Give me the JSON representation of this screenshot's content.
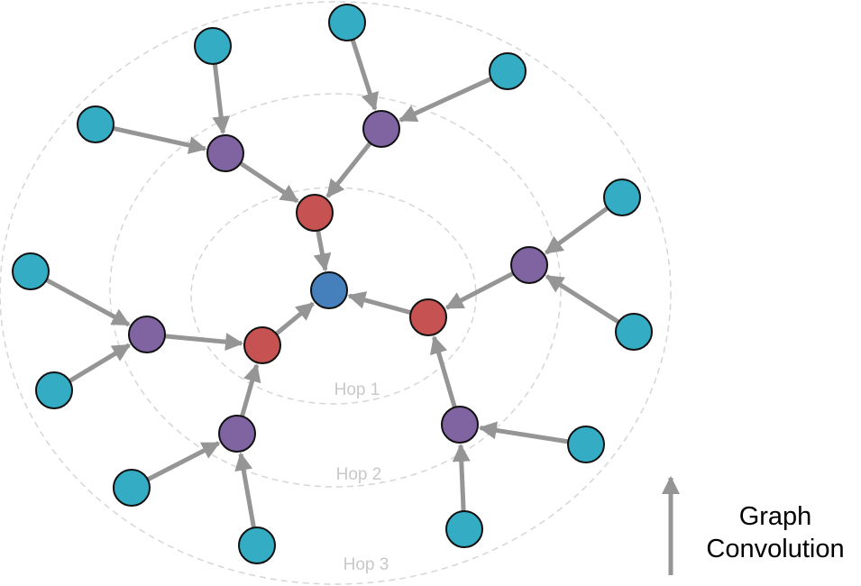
{
  "hop_labels": [
    "Hop 1",
    "Hop 2",
    "Hop 3"
  ],
  "legend": {
    "line1": "Graph",
    "line2": "Convolution"
  },
  "colors": {
    "target": "#4680BC",
    "hop1": "#C65252",
    "hop2": "#8064A2",
    "hop3": "#33ACC4",
    "edge": "#959595",
    "ring": "#d6d6d6"
  },
  "nodes": [
    {
      "id": "c",
      "level": "target"
    },
    {
      "id": "r1",
      "level": "hop1"
    },
    {
      "id": "r2",
      "level": "hop1"
    },
    {
      "id": "r3",
      "level": "hop1"
    },
    {
      "id": "p1",
      "level": "hop2"
    },
    {
      "id": "p2",
      "level": "hop2"
    },
    {
      "id": "p3",
      "level": "hop2"
    },
    {
      "id": "p4",
      "level": "hop2"
    },
    {
      "id": "p5",
      "level": "hop2"
    },
    {
      "id": "p6",
      "level": "hop2"
    },
    {
      "id": "t1",
      "level": "hop3"
    },
    {
      "id": "t2",
      "level": "hop3"
    },
    {
      "id": "t3",
      "level": "hop3"
    },
    {
      "id": "t4",
      "level": "hop3"
    },
    {
      "id": "t5",
      "level": "hop3"
    },
    {
      "id": "t6",
      "level": "hop3"
    },
    {
      "id": "t7",
      "level": "hop3"
    },
    {
      "id": "t8",
      "level": "hop3"
    },
    {
      "id": "t9",
      "level": "hop3"
    },
    {
      "id": "t10",
      "level": "hop3"
    },
    {
      "id": "t11",
      "level": "hop3"
    },
    {
      "id": "t12",
      "level": "hop3"
    }
  ],
  "edges": [
    [
      "t1",
      "p1"
    ],
    [
      "t2",
      "p1"
    ],
    [
      "t3",
      "p2"
    ],
    [
      "t4",
      "p2"
    ],
    [
      "t5",
      "p3"
    ],
    [
      "t6",
      "p3"
    ],
    [
      "t7",
      "p4"
    ],
    [
      "t8",
      "p4"
    ],
    [
      "t9",
      "p5"
    ],
    [
      "t10",
      "p5"
    ],
    [
      "t11",
      "p6"
    ],
    [
      "t12",
      "p6"
    ],
    [
      "p1",
      "r1"
    ],
    [
      "p2",
      "r1"
    ],
    [
      "p3",
      "r2"
    ],
    [
      "p6",
      "r2"
    ],
    [
      "p4",
      "r3"
    ],
    [
      "p5",
      "r3"
    ],
    [
      "r1",
      "c"
    ],
    [
      "r2",
      "c"
    ],
    [
      "r3",
      "c"
    ]
  ]
}
